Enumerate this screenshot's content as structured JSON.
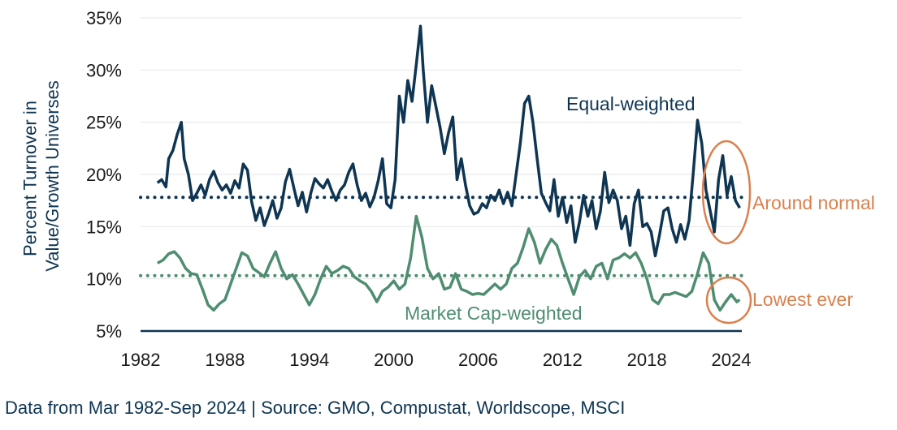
{
  "chart_data": {
    "type": "line",
    "ylabel": "Percent Turnover in Value/Growth Universes",
    "ylim": [
      5,
      35
    ],
    "xlim": [
      1982,
      2024.75
    ],
    "yticks": [
      "5%",
      "10%",
      "15%",
      "20%",
      "25%",
      "30%",
      "35%"
    ],
    "xticks": [
      "1982",
      "1988",
      "1994",
      "2000",
      "2006",
      "2012",
      "2018",
      "2024"
    ],
    "series": [
      {
        "name": "Equal-weighted",
        "label": "Equal-weighted",
        "color": "#0e3552",
        "average": 17.8,
        "x": [
          1983.2,
          1983.5,
          1983.8,
          1984.0,
          1984.3,
          1984.6,
          1984.9,
          1985.1,
          1985.4,
          1985.7,
          1986.0,
          1986.3,
          1986.6,
          1986.9,
          1987.2,
          1987.5,
          1987.8,
          1988.1,
          1988.4,
          1988.7,
          1989.0,
          1989.3,
          1989.6,
          1989.9,
          1990.2,
          1990.5,
          1990.8,
          1991.1,
          1991.4,
          1991.7,
          1992.0,
          1992.3,
          1992.6,
          1992.9,
          1993.2,
          1993.5,
          1993.8,
          1994.1,
          1994.4,
          1994.7,
          1995.0,
          1995.3,
          1995.6,
          1995.9,
          1996.2,
          1996.5,
          1996.8,
          1997.1,
          1997.4,
          1997.7,
          1998.0,
          1998.3,
          1998.6,
          1998.9,
          1999.2,
          1999.5,
          1999.8,
          2000.1,
          2000.4,
          2000.7,
          2001.0,
          2001.3,
          2001.6,
          2001.9,
          2002.1,
          2002.4,
          2002.7,
          2003.0,
          2003.3,
          2003.6,
          2003.9,
          2004.2,
          2004.5,
          2004.8,
          2005.1,
          2005.4,
          2005.7,
          2006.0,
          2006.3,
          2006.6,
          2006.9,
          2007.2,
          2007.5,
          2007.8,
          2008.1,
          2008.4,
          2008.7,
          2009.0,
          2009.3,
          2009.6,
          2009.9,
          2010.2,
          2010.5,
          2010.8,
          2011.1,
          2011.4,
          2011.7,
          2012.0,
          2012.3,
          2012.6,
          2012.9,
          2013.2,
          2013.5,
          2013.8,
          2014.1,
          2014.4,
          2014.7,
          2015.0,
          2015.3,
          2015.6,
          2015.9,
          2016.2,
          2016.5,
          2016.8,
          2017.1,
          2017.4,
          2017.7,
          2018.0,
          2018.3,
          2018.6,
          2018.9,
          2019.2,
          2019.5,
          2019.8,
          2020.1,
          2020.4,
          2020.7,
          2021.0,
          2021.3,
          2021.6,
          2021.9,
          2022.2,
          2022.5,
          2022.8,
          2023.1,
          2023.4,
          2023.7,
          2024.0,
          2024.3,
          2024.6
        ],
        "y": [
          19.2,
          19.5,
          18.8,
          21.5,
          22.3,
          23.8,
          25.0,
          21.5,
          20.0,
          17.5,
          18.2,
          19.0,
          18.0,
          19.5,
          20.3,
          19.2,
          18.5,
          19.0,
          18.2,
          19.4,
          18.7,
          21.0,
          20.4,
          17.4,
          15.6,
          16.8,
          15.1,
          16.2,
          17.5,
          15.8,
          16.8,
          19.3,
          20.5,
          18.7,
          17.0,
          18.3,
          16.4,
          18.2,
          19.6,
          19.1,
          18.7,
          19.5,
          18.4,
          17.5,
          18.5,
          19.0,
          20.2,
          21.0,
          19.0,
          17.5,
          18.2,
          16.9,
          17.8,
          19.4,
          21.5,
          17.2,
          16.8,
          19.5,
          27.5,
          25.0,
          29.0,
          27.0,
          30.5,
          34.2,
          30.0,
          25.0,
          28.5,
          26.5,
          24.5,
          22.0,
          24.0,
          25.5,
          19.5,
          21.5,
          19.0,
          17.0,
          16.2,
          16.4,
          17.2,
          16.8,
          18.0,
          17.5,
          18.5,
          17.2,
          18.3,
          17.0,
          20.0,
          23.0,
          26.8,
          27.5,
          25.0,
          21.5,
          18.2,
          17.3,
          16.5,
          19.5,
          16.0,
          17.8,
          15.4,
          17.0,
          13.5,
          15.4,
          18.0,
          16.0,
          17.5,
          14.8,
          16.5,
          20.2,
          17.3,
          18.5,
          17.5,
          14.8,
          16.0,
          13.2,
          17.2,
          18.5,
          15.0,
          15.3,
          14.5,
          12.2,
          14.2,
          16.5,
          16.8,
          14.8,
          13.5,
          15.2,
          13.8,
          15.6,
          20.2,
          25.2,
          23.0,
          18.5,
          16.5,
          14.5,
          19.5,
          21.8,
          18.0,
          19.8,
          17.5,
          16.8
        ]
      },
      {
        "name": "Market Cap-weighted",
        "label": "Market Cap-weighted",
        "color": "#4f8d70",
        "average": 10.3,
        "x": [
          1983.2,
          1983.6,
          1984.0,
          1984.4,
          1984.8,
          1985.2,
          1985.6,
          1986.0,
          1986.4,
          1986.8,
          1987.2,
          1987.6,
          1988.0,
          1988.4,
          1988.8,
          1989.2,
          1989.6,
          1990.0,
          1990.4,
          1990.8,
          1991.2,
          1991.6,
          1992.0,
          1992.4,
          1992.8,
          1993.2,
          1993.6,
          1994.0,
          1994.4,
          1994.8,
          1995.2,
          1995.6,
          1996.0,
          1996.4,
          1996.8,
          1997.2,
          1997.6,
          1998.0,
          1998.4,
          1998.8,
          1999.2,
          1999.6,
          2000.0,
          2000.4,
          2000.8,
          2001.2,
          2001.6,
          2002.0,
          2002.4,
          2002.8,
          2003.2,
          2003.6,
          2004.0,
          2004.4,
          2004.8,
          2005.2,
          2005.6,
          2006.0,
          2006.4,
          2006.8,
          2007.2,
          2007.6,
          2008.0,
          2008.4,
          2008.8,
          2009.2,
          2009.6,
          2010.0,
          2010.4,
          2010.8,
          2011.2,
          2011.6,
          2012.0,
          2012.4,
          2012.8,
          2013.2,
          2013.6,
          2014.0,
          2014.4,
          2014.8,
          2015.2,
          2015.6,
          2016.0,
          2016.4,
          2016.8,
          2017.2,
          2017.6,
          2018.0,
          2018.4,
          2018.8,
          2019.2,
          2019.6,
          2020.0,
          2020.4,
          2020.8,
          2021.2,
          2021.6,
          2022.0,
          2022.4,
          2022.8,
          2023.2,
          2023.6,
          2024.0,
          2024.4,
          2024.6
        ],
        "y": [
          11.5,
          11.8,
          12.4,
          12.6,
          12.0,
          11.0,
          10.5,
          10.4,
          9.0,
          7.5,
          7.0,
          7.6,
          8.0,
          9.5,
          11.0,
          12.5,
          12.2,
          11.0,
          10.6,
          10.2,
          11.5,
          12.6,
          11.0,
          10.0,
          10.4,
          9.5,
          8.5,
          7.5,
          8.5,
          10.0,
          11.2,
          10.5,
          10.8,
          11.2,
          11.0,
          10.2,
          9.8,
          9.5,
          8.8,
          7.8,
          8.8,
          9.2,
          9.8,
          9.0,
          9.5,
          12.0,
          16.0,
          14.0,
          11.0,
          10.0,
          10.5,
          9.0,
          9.2,
          10.5,
          9.0,
          8.8,
          8.5,
          8.6,
          8.5,
          9.0,
          9.5,
          9.0,
          9.5,
          11.0,
          11.5,
          13.0,
          14.8,
          13.5,
          11.5,
          12.8,
          13.8,
          13.2,
          11.5,
          10.0,
          8.5,
          10.2,
          10.8,
          10.0,
          11.2,
          11.5,
          10.0,
          11.8,
          12.0,
          12.4,
          12.0,
          12.5,
          11.5,
          10.0,
          8.0,
          7.6,
          8.5,
          8.5,
          8.7,
          8.5,
          8.3,
          8.8,
          10.5,
          12.5,
          11.5,
          8.0,
          7.0,
          7.8,
          8.5,
          7.8,
          8.0
        ]
      }
    ],
    "annotations": [
      {
        "text": "Around normal",
        "color": "#d9814f"
      },
      {
        "text": "Lowest ever",
        "color": "#d9814f"
      }
    ]
  },
  "footer": "Data from Mar 1982-Sep 2024 | Source: GMO, Compustat, Worldscope, MSCI"
}
